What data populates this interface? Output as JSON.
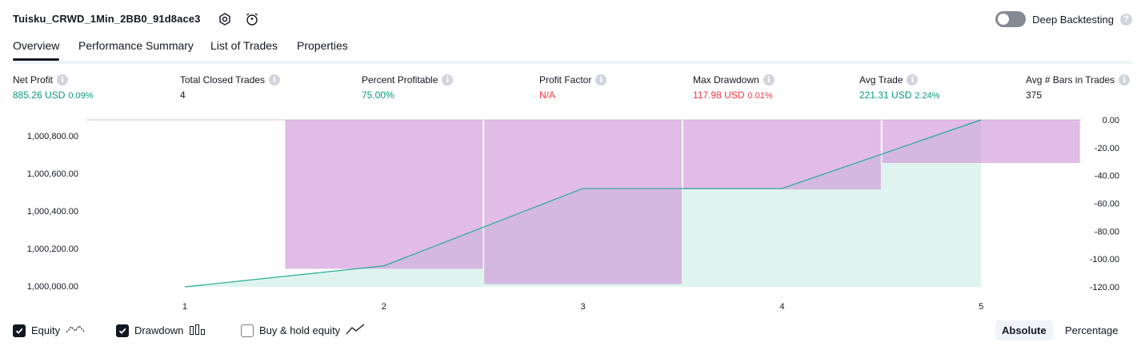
{
  "header": {
    "strategy_name": "Tuisku_CRWD_1Min_2BB0_91d8ace3",
    "settings_icon": "settings-icon",
    "alert_icon": "alarm-clock-icon",
    "deep_backtesting_label": "Deep Backtesting",
    "deep_backtesting_enabled": false,
    "help_icon": "question-icon"
  },
  "tabs": [
    {
      "label": "Overview",
      "active": true
    },
    {
      "label": "Performance Summary",
      "active": false
    },
    {
      "label": "List of Trades",
      "active": false
    },
    {
      "label": "Properties",
      "active": false
    }
  ],
  "stats": [
    {
      "label": "Net Profit",
      "value": "885.26 USD",
      "pct": "0.09%",
      "tone": "pos"
    },
    {
      "label": "Total Closed Trades",
      "value": "4",
      "pct": "",
      "tone": "neu"
    },
    {
      "label": "Percent Profitable",
      "value": "75.00%",
      "pct": "",
      "tone": "pos"
    },
    {
      "label": "Profit Factor",
      "value": "N/A",
      "pct": "",
      "tone": "neg"
    },
    {
      "label": "Max Drawdown",
      "value": "117.98 USD",
      "pct": "0.01%",
      "tone": "neg"
    },
    {
      "label": "Avg Trade",
      "value": "221.31 USD",
      "pct": "2.24%",
      "tone": "pos"
    },
    {
      "label": "Avg # Bars in Trades",
      "value": "375",
      "pct": "",
      "tone": "neu"
    }
  ],
  "chart_data": {
    "type": "line",
    "x": [
      1,
      2,
      3,
      4,
      5
    ],
    "series": [
      {
        "name": "Equity",
        "values": [
          999996,
          1000108,
          1000520,
          1000520,
          1000885
        ],
        "color": "#22ab94"
      },
      {
        "name": "Drawdown",
        "values": [
          0,
          -107,
          -118,
          -50,
          -31
        ],
        "color": "#ce93d8"
      }
    ],
    "equity_axis": {
      "ticks": [
        1000000,
        1000200,
        1000400,
        1000600,
        1000800
      ],
      "tick_labels": [
        "1,000,000.00",
        "1,000,200.00",
        "1,000,400.00",
        "1,000,600.00",
        "1,000,800.00"
      ],
      "range": [
        999996,
        1000885
      ]
    },
    "drawdown_axis": {
      "ticks": [
        0,
        -20,
        -40,
        -60,
        -80,
        -100,
        -120
      ],
      "tick_labels": [
        "0.00",
        "-20.00",
        "-40.00",
        "-60.00",
        "-80.00",
        "-100.00",
        "-120.00"
      ],
      "range": [
        -120,
        0
      ]
    },
    "x_tick_labels": [
      "1",
      "2",
      "3",
      "4",
      "5"
    ],
    "title": "",
    "xlabel": "",
    "ylabel": "",
    "grid": false
  },
  "legend": {
    "items": [
      {
        "label": "Equity",
        "checked": true,
        "icon": "equity-line-icon"
      },
      {
        "label": "Drawdown",
        "checked": true,
        "icon": "drawdown-bars-icon"
      },
      {
        "label": "Buy & hold equity",
        "checked": false,
        "icon": "buy-hold-line-icon"
      }
    ],
    "modes": [
      {
        "label": "Absolute",
        "active": true
      },
      {
        "label": "Percentage",
        "active": false
      }
    ]
  }
}
